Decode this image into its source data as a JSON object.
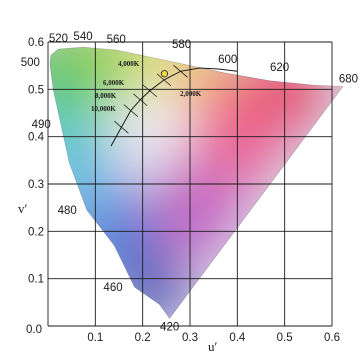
{
  "chart_data": {
    "type": "chromaticity-diagram",
    "title": "",
    "xlabel": "u′",
    "ylabel": "v′",
    "xlim": [
      0.0,
      0.6
    ],
    "ylim": [
      0.0,
      0.6
    ],
    "grid": true,
    "x_ticks": [
      "0.1",
      "0.2",
      "0.3",
      "0.4",
      "0.5",
      "0.6"
    ],
    "y_ticks": [
      "0.0",
      "0.1",
      "0.2",
      "0.3",
      "0.4",
      "0.5",
      "0.6"
    ],
    "origin_label": "0.0",
    "spectral_locus_labels": [
      {
        "label": "420",
        "u": 0.257,
        "v": 0.016
      },
      {
        "label": "460",
        "u": 0.183,
        "v": 0.082
      },
      {
        "label": "480",
        "u": 0.082,
        "v": 0.245
      },
      {
        "label": "490",
        "u": 0.027,
        "v": 0.427
      },
      {
        "label": "500",
        "u": 0.004,
        "v": 0.553
      },
      {
        "label": "520",
        "u": 0.022,
        "v": 0.585
      },
      {
        "label": "540",
        "u": 0.074,
        "v": 0.589
      },
      {
        "label": "560",
        "u": 0.144,
        "v": 0.583
      },
      {
        "label": "580",
        "u": 0.245,
        "v": 0.562
      },
      {
        "label": "600",
        "u": 0.372,
        "v": 0.535
      },
      {
        "label": "620",
        "u": 0.469,
        "v": 0.518
      },
      {
        "label": "680",
        "u": 0.623,
        "v": 0.506
      }
    ],
    "planckian_locus": {
      "points": [
        [
          0.133,
          0.38
        ],
        [
          0.155,
          0.42
        ],
        [
          0.175,
          0.455
        ],
        [
          0.195,
          0.478
        ],
        [
          0.215,
          0.497
        ],
        [
          0.245,
          0.52
        ],
        [
          0.28,
          0.538
        ],
        [
          0.32,
          0.545
        ],
        [
          0.36,
          0.543
        ],
        [
          0.4,
          0.538
        ]
      ],
      "marked_point": {
        "u": 0.246,
        "v": 0.533
      },
      "isotherm_labels": [
        "4,000K",
        "6,000K",
        "8,000K",
        "10,000K",
        "2,000K"
      ]
    }
  }
}
